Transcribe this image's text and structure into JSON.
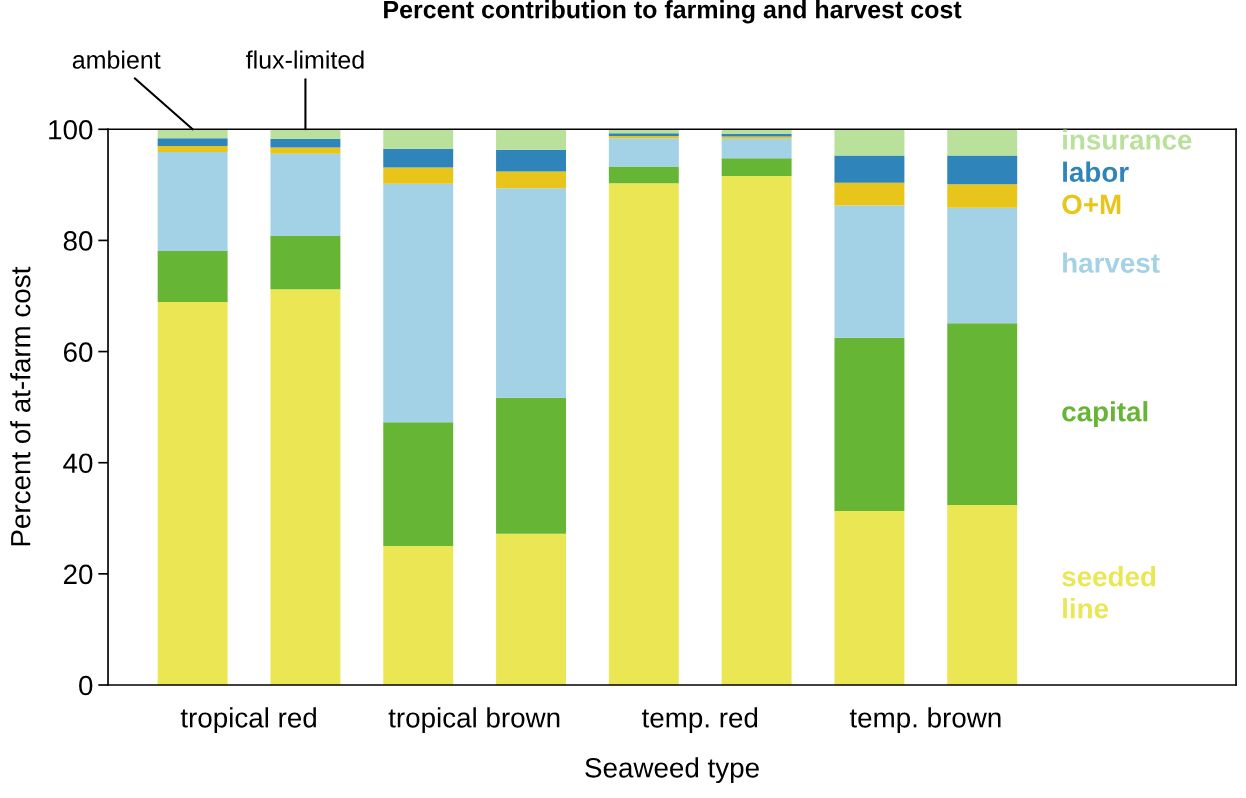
{
  "chart_data": {
    "type": "bar",
    "stacked": true,
    "title": "Percent contribution to farming and harvest cost",
    "xlabel": "Seaweed type",
    "ylabel": "Percent of at-farm cost",
    "categories": [
      null,
      null,
      null,
      null,
      null,
      null,
      null,
      null
    ],
    "ylim": [
      0,
      100
    ],
    "yticks": [
      0,
      20,
      40,
      60,
      80,
      100
    ],
    "grid": false,
    "legend": false,
    "series": [
      {
        "name": "seeded line",
        "color": "#ebe653",
        "values": [
          68.9,
          71.2,
          25.0,
          27.2,
          90.3,
          91.6,
          31.3,
          32.4
        ]
      },
      {
        "name": "capital",
        "color": "#67b534",
        "values": [
          9.2,
          9.6,
          22.3,
          24.5,
          3.0,
          3.2,
          31.2,
          32.7
        ]
      },
      {
        "name": "harvest",
        "color": "#a3d1e5",
        "values": [
          17.8,
          14.8,
          42.9,
          37.7,
          5.1,
          3.5,
          23.8,
          20.8
        ]
      },
      {
        "name": "O+M",
        "color": "#e8c51a",
        "values": [
          1.1,
          1.1,
          2.9,
          3.0,
          0.4,
          0.4,
          4.1,
          4.2
        ]
      },
      {
        "name": "labor",
        "color": "#2f84b9",
        "values": [
          1.4,
          1.6,
          3.4,
          3.9,
          0.5,
          0.5,
          4.9,
          5.2
        ]
      },
      {
        "name": "insurance",
        "color": "#b9e19b",
        "values": [
          1.6,
          1.7,
          3.5,
          3.7,
          0.7,
          0.8,
          4.7,
          4.7
        ]
      }
    ],
    "annotations": [
      "ambient",
      "flux-limited",
      "tropical red",
      "tropical brown",
      "temp. red",
      "temp. brown"
    ]
  }
}
